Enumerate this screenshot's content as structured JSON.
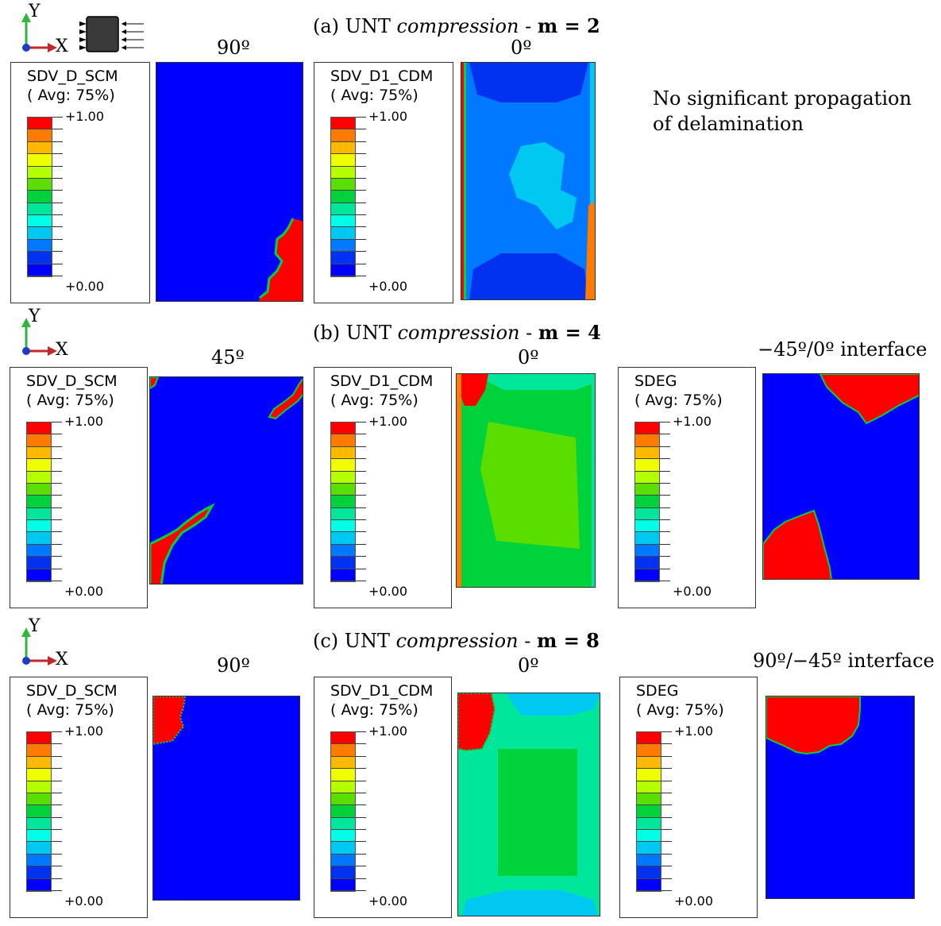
{
  "rows": [
    {
      "title_prefix": "(a) UNT ",
      "title_italic": "compression",
      "title_dash": " - ",
      "title_bold": "m = 2"
    },
    {
      "title_prefix": "(b) UNT ",
      "title_italic": "compression",
      "title_dash": " - ",
      "title_bold": "m = 4"
    },
    {
      "title_prefix": "(c) UNT ",
      "title_italic": "compression",
      "title_dash": " - ",
      "title_bold": "m = 8"
    }
  ],
  "axes": {
    "y": "Y",
    "x": "X"
  },
  "labels": {
    "a_ply1": "90º",
    "a_ply2": "0º",
    "b_ply1": "45º",
    "b_ply2": "0º",
    "b_interface": "−45º/0º interface",
    "c_ply1": "90º",
    "c_ply2": "0º",
    "c_interface": "90º/−45º interface"
  },
  "note": {
    "line1": "No significant propagation",
    "line2": "of delamination"
  },
  "legends": {
    "scm": {
      "name": "SDV_D_SCM",
      "avg": "( Avg: 75%)",
      "max": "+1.00",
      "min": "+0.00"
    },
    "cdm": {
      "name": "SDV_D1_CDM",
      "avg": "( Avg: 75%)",
      "max": "+1.00",
      "min": "+0.00"
    },
    "sdeg": {
      "name": "SDEG",
      "avg": "( Avg: 75%)",
      "max": "+1.00",
      "min": "+0.00"
    }
  },
  "colormap": [
    "#ff0000",
    "#ff7a00",
    "#ffb800",
    "#f0ff00",
    "#b4ff00",
    "#5ade00",
    "#00d23c",
    "#00e69a",
    "#00ffe6",
    "#00c8f0",
    "#0078ff",
    "#0032f0",
    "#0000ff"
  ]
}
